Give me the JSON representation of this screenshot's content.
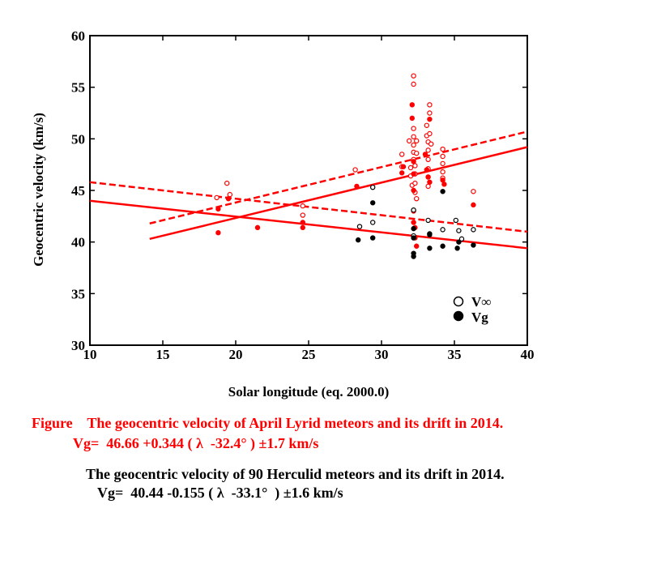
{
  "chart_data": {
    "type": "scatter",
    "xlabel": "Solar longitude (eq. 2000.0)",
    "ylabel": "Geocentric velocity (km/s)",
    "xlim": [
      10,
      40
    ],
    "ylim": [
      30,
      60
    ],
    "x_ticks": [
      10,
      15,
      20,
      25,
      30,
      35,
      40
    ],
    "y_ticks": [
      30,
      35,
      40,
      45,
      50,
      55,
      60
    ],
    "legend": {
      "placement": "bottom-right",
      "entries": [
        {
          "symbol": "open-circle",
          "label": "V∞"
        },
        {
          "symbol": "filled-circle",
          "label": "Vg"
        }
      ]
    },
    "colors": {
      "lyrid": "#ff0000",
      "herculid": "#000000"
    },
    "series": [
      {
        "marker": "open-circle",
        "color": "#ff0000",
        "points": [
          [
            18.7,
            44.3
          ],
          [
            19.4,
            45.7
          ],
          [
            19.6,
            44.6
          ],
          [
            24.6,
            43.5
          ],
          [
            24.6,
            42.6
          ],
          [
            28.2,
            47.0
          ],
          [
            31.4,
            48.5
          ],
          [
            31.4,
            47.3
          ],
          [
            31.9,
            49.8
          ],
          [
            32.0,
            47.2
          ],
          [
            32.0,
            46.4
          ],
          [
            32.1,
            45.5
          ],
          [
            32.2,
            56.1
          ],
          [
            32.2,
            55.3
          ],
          [
            32.2,
            51.0
          ],
          [
            32.2,
            50.2
          ],
          [
            32.2,
            49.4
          ],
          [
            32.2,
            48.7
          ],
          [
            32.2,
            48.0
          ],
          [
            32.3,
            47.4
          ],
          [
            32.3,
            46.6
          ],
          [
            32.3,
            45.7
          ],
          [
            32.3,
            44.8
          ],
          [
            32.4,
            44.2
          ],
          [
            32.4,
            49.8
          ],
          [
            32.4,
            48.6
          ],
          [
            33.1,
            51.3
          ],
          [
            33.1,
            50.3
          ],
          [
            33.2,
            49.7
          ],
          [
            33.2,
            48.9
          ],
          [
            33.2,
            48.0
          ],
          [
            33.2,
            47.1
          ],
          [
            33.2,
            46.3
          ],
          [
            33.2,
            45.4
          ],
          [
            33.3,
            53.3
          ],
          [
            33.3,
            52.5
          ],
          [
            33.3,
            50.5
          ],
          [
            33.4,
            49.5
          ],
          [
            34.2,
            49.0
          ],
          [
            34.2,
            48.3
          ],
          [
            34.2,
            47.6
          ],
          [
            34.2,
            46.8
          ],
          [
            34.2,
            46.2
          ],
          [
            36.3,
            44.9
          ]
        ]
      },
      {
        "marker": "filled-circle",
        "color": "#ff0000",
        "points": [
          [
            18.8,
            40.9
          ],
          [
            18.8,
            43.2
          ],
          [
            19.5,
            44.2
          ],
          [
            21.5,
            41.4
          ],
          [
            24.6,
            41.4
          ],
          [
            24.6,
            41.9
          ],
          [
            28.3,
            45.4
          ],
          [
            31.4,
            46.7
          ],
          [
            31.5,
            47.3
          ],
          [
            32.1,
            53.3
          ],
          [
            32.1,
            52.0
          ],
          [
            32.2,
            47.8
          ],
          [
            32.2,
            46.6
          ],
          [
            32.2,
            45.0
          ],
          [
            32.2,
            43.0
          ],
          [
            32.2,
            41.9
          ],
          [
            32.3,
            41.4
          ],
          [
            32.3,
            40.4
          ],
          [
            32.4,
            39.6
          ],
          [
            33.0,
            48.5
          ],
          [
            33.1,
            47.0
          ],
          [
            33.2,
            46.3
          ],
          [
            33.3,
            51.9
          ],
          [
            33.3,
            45.8
          ],
          [
            34.2,
            46.0
          ],
          [
            34.3,
            45.6
          ],
          [
            36.3,
            43.6
          ]
        ]
      },
      {
        "marker": "open-circle",
        "color": "#000000",
        "points": [
          [
            28.5,
            41.5
          ],
          [
            29.4,
            45.3
          ],
          [
            29.4,
            41.9
          ],
          [
            32.2,
            43.1
          ],
          [
            32.2,
            40.6
          ],
          [
            33.2,
            42.1
          ],
          [
            33.3,
            40.8
          ],
          [
            34.2,
            41.2
          ],
          [
            35.1,
            42.1
          ],
          [
            35.3,
            41.1
          ],
          [
            35.5,
            40.3
          ],
          [
            36.3,
            41.2
          ]
        ]
      },
      {
        "marker": "filled-circle",
        "color": "#000000",
        "points": [
          [
            28.4,
            40.2
          ],
          [
            29.4,
            43.8
          ],
          [
            29.4,
            40.4
          ],
          [
            32.2,
            41.3
          ],
          [
            32.2,
            40.4
          ],
          [
            32.2,
            38.9
          ],
          [
            32.2,
            38.6
          ],
          [
            33.3,
            40.7
          ],
          [
            33.3,
            39.4
          ],
          [
            34.2,
            44.9
          ],
          [
            34.2,
            39.6
          ],
          [
            35.2,
            39.4
          ],
          [
            35.3,
            40.0
          ],
          [
            36.3,
            39.7
          ]
        ]
      }
    ],
    "fit_lines": [
      {
        "color": "#ff0000",
        "style": "solid",
        "x": [
          14.1,
          40.0
        ],
        "y": [
          40.3,
          49.2
        ]
      },
      {
        "color": "#ff0000",
        "style": "dashed",
        "x": [
          14.1,
          40.0
        ],
        "y": [
          41.8,
          50.7
        ]
      },
      {
        "color": "#ff0000",
        "style": "solid",
        "x": [
          10.0,
          40.0
        ],
        "y": [
          44.0,
          39.4
        ]
      },
      {
        "color": "#ff0000",
        "style": "dashed",
        "x": [
          10.0,
          40.0
        ],
        "y": [
          45.8,
          41.0
        ]
      }
    ]
  },
  "caption": {
    "red_line1": "Figure    The geocentric velocity of April Lyrid meteors and its drift in 2014.",
    "red_line2": "Vg=  46.66 +0.344 ( λ  -32.4° ) ±1.7 km/s",
    "black_line1": "The geocentric velocity of 90 Herculid meteors and its drift in 2014.",
    "black_line2": "Vg=  40.44 -0.155 ( λ  -33.1°  ) ±1.6 km/s"
  }
}
